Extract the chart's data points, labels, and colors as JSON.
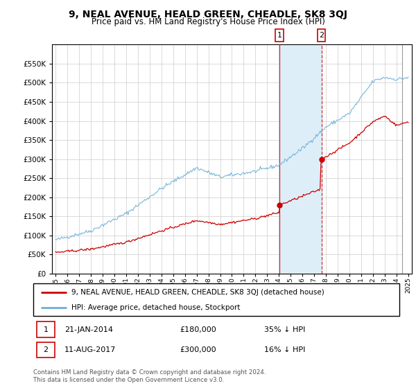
{
  "title": "9, NEAL AVENUE, HEALD GREEN, CHEADLE, SK8 3QJ",
  "subtitle": "Price paid vs. HM Land Registry's House Price Index (HPI)",
  "ylim": [
    0,
    600000
  ],
  "yticks": [
    0,
    50000,
    100000,
    150000,
    200000,
    250000,
    300000,
    350000,
    400000,
    450000,
    500000,
    550000
  ],
  "xlim_left": 1994.7,
  "xlim_right": 2025.3,
  "sale1_date": 2014.05,
  "sale1_price": 180000,
  "sale2_date": 2017.62,
  "sale2_price": 300000,
  "shade_start": 2014.05,
  "shade_end": 2017.62,
  "hatch_start": 2024.5,
  "legend_line1": "9, NEAL AVENUE, HEALD GREEN, CHEADLE, SK8 3QJ (detached house)",
  "legend_line2": "HPI: Average price, detached house, Stockport",
  "footnote": "Contains HM Land Registry data © Crown copyright and database right 2024.\nThis data is licensed under the Open Government Licence v3.0.",
  "hpi_color": "#6baed6",
  "price_color": "#cc0000",
  "shade_color": "#ddeef8",
  "marker_color": "#cc0000",
  "bg_color": "#ffffff"
}
